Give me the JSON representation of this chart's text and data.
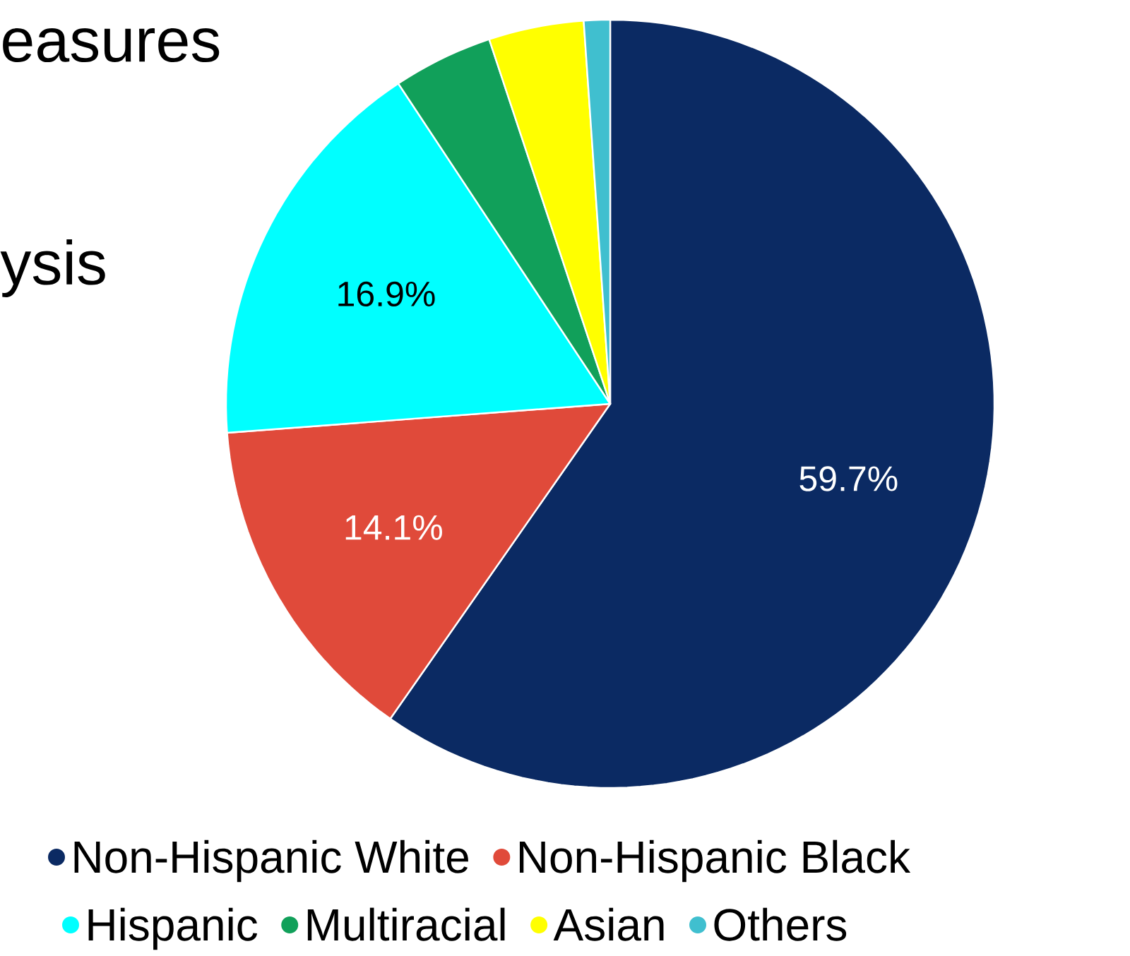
{
  "chart_data": {
    "type": "pie",
    "categories": [
      "Non-Hispanic White",
      "Non-Hispanic Black",
      "Hispanic",
      "Multiracial",
      "Asian",
      "Others"
    ],
    "values": [
      59.7,
      14.1,
      16.9,
      4.2,
      4.0,
      1.1
    ],
    "colors": [
      "#0b2a63",
      "#e04a3a",
      "#00ffff",
      "#11a05a",
      "#ffff00",
      "#40bfcf"
    ],
    "value_labels": [
      "59.7%",
      "14.1%",
      "16.9%",
      null,
      null,
      null
    ],
    "legend": "bottom",
    "annotations": [
      "easures",
      "ysis"
    ]
  }
}
